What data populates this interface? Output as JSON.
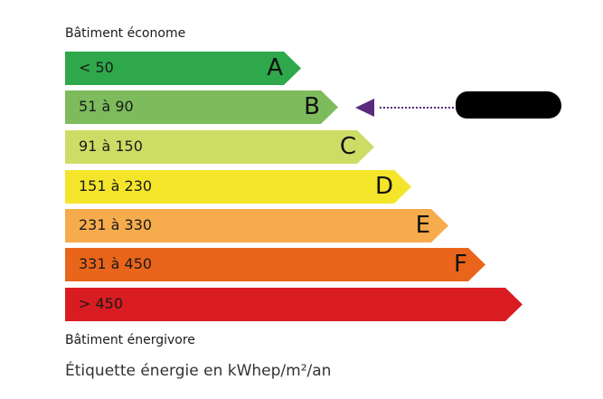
{
  "header": {
    "top_label": "Bâtiment économe",
    "bottom_label": "Bâtiment énergivore"
  },
  "bands": [
    {
      "range": "< 50",
      "letter": "A",
      "color": "#2ea84a"
    },
    {
      "range": "51 à 90",
      "letter": "B",
      "color": "#7dbb5c"
    },
    {
      "range": "91 à 150",
      "letter": "C",
      "color": "#cddc65"
    },
    {
      "range": "151 à 230",
      "letter": "D",
      "color": "#f4e52a"
    },
    {
      "range": "231 à 330",
      "letter": "E",
      "color": "#f6ab4c"
    },
    {
      "range": "331 à 450",
      "letter": "F",
      "color": "#e9651b"
    },
    {
      "range": "> 450",
      "letter": "",
      "color": "#d91c21"
    }
  ],
  "indicator": {
    "band": "B",
    "color": "#5b2a7c",
    "value_redacted": true
  },
  "footer": {
    "unit_caption": "Étiquette énergie en kWhep/m²/an"
  }
}
